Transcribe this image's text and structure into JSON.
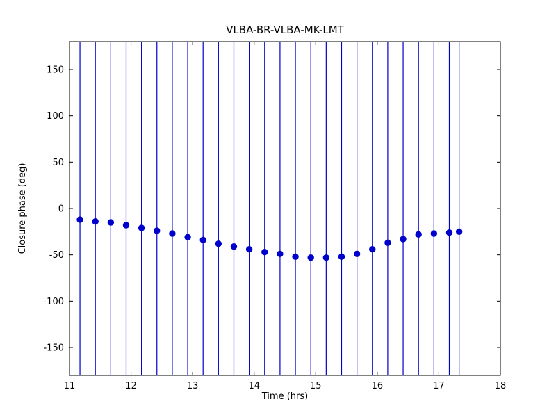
{
  "figure": {
    "background": "#ffffff"
  },
  "chart_data": {
    "type": "scatter",
    "title": "VLBA-BR-VLBA-MK-LMT",
    "xlabel": "Time (hrs)",
    "ylabel": "Closure phase (deg)",
    "xlim": [
      11,
      18
    ],
    "ylim": [
      -180,
      180
    ],
    "xticks": [
      11,
      12,
      13,
      14,
      15,
      16,
      17,
      18
    ],
    "yticks": [
      -150,
      -100,
      -50,
      0,
      50,
      100,
      150
    ],
    "grid": false,
    "legend": "none",
    "marker": "circle",
    "marker_color": "#0000cd",
    "errorbar_color": "#0000cd",
    "errorbars_span_full_axis": true,
    "series": [
      {
        "name": "closure-phase",
        "x": [
          11.17,
          11.42,
          11.67,
          11.92,
          12.17,
          12.42,
          12.67,
          12.92,
          13.17,
          13.42,
          13.67,
          13.92,
          14.17,
          14.42,
          14.67,
          14.92,
          15.17,
          15.42,
          15.67,
          15.92,
          16.17,
          16.42,
          16.67,
          16.92,
          17.17,
          17.33
        ],
        "y": [
          -12,
          -14,
          -15,
          -18,
          -21,
          -24,
          -27,
          -31,
          -34,
          -38,
          -41,
          -44,
          -47,
          -49,
          -52,
          -53,
          -53,
          -52,
          -49,
          -44,
          -37,
          -33,
          -28,
          -27,
          -26,
          -25
        ]
      }
    ]
  }
}
